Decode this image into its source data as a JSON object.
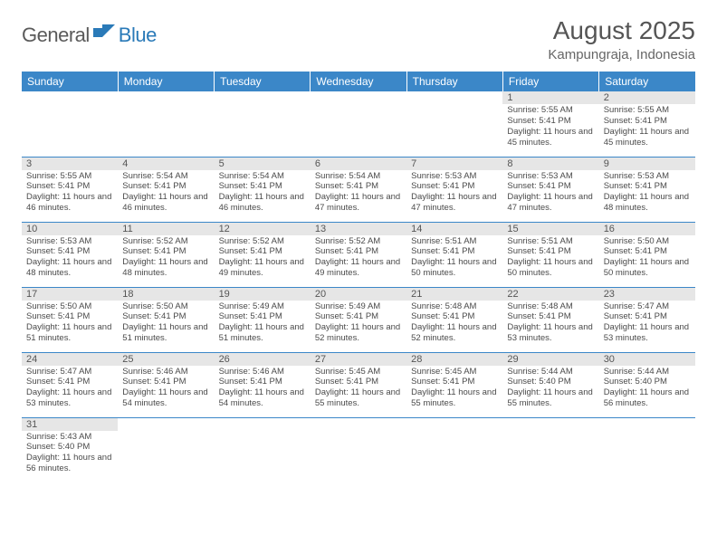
{
  "brand": {
    "part1": "General",
    "part2": "Blue"
  },
  "title": "August 2025",
  "location": "Kampungraja, Indonesia",
  "colors": {
    "header_bg": "#3b87c8",
    "header_text": "#ffffff",
    "daynum_bg": "#e6e6e6",
    "cell_border": "#3b87c8",
    "logo_blue": "#2a7ab8",
    "body_text": "#4a4a4a"
  },
  "day_names": [
    "Sunday",
    "Monday",
    "Tuesday",
    "Wednesday",
    "Thursday",
    "Friday",
    "Saturday"
  ],
  "weeks": [
    [
      null,
      null,
      null,
      null,
      null,
      {
        "n": "1",
        "sr": "5:55 AM",
        "ss": "5:41 PM",
        "dl": "11 hours and 45 minutes."
      },
      {
        "n": "2",
        "sr": "5:55 AM",
        "ss": "5:41 PM",
        "dl": "11 hours and 45 minutes."
      }
    ],
    [
      {
        "n": "3",
        "sr": "5:55 AM",
        "ss": "5:41 PM",
        "dl": "11 hours and 46 minutes."
      },
      {
        "n": "4",
        "sr": "5:54 AM",
        "ss": "5:41 PM",
        "dl": "11 hours and 46 minutes."
      },
      {
        "n": "5",
        "sr": "5:54 AM",
        "ss": "5:41 PM",
        "dl": "11 hours and 46 minutes."
      },
      {
        "n": "6",
        "sr": "5:54 AM",
        "ss": "5:41 PM",
        "dl": "11 hours and 47 minutes."
      },
      {
        "n": "7",
        "sr": "5:53 AM",
        "ss": "5:41 PM",
        "dl": "11 hours and 47 minutes."
      },
      {
        "n": "8",
        "sr": "5:53 AM",
        "ss": "5:41 PM",
        "dl": "11 hours and 47 minutes."
      },
      {
        "n": "9",
        "sr": "5:53 AM",
        "ss": "5:41 PM",
        "dl": "11 hours and 48 minutes."
      }
    ],
    [
      {
        "n": "10",
        "sr": "5:53 AM",
        "ss": "5:41 PM",
        "dl": "11 hours and 48 minutes."
      },
      {
        "n": "11",
        "sr": "5:52 AM",
        "ss": "5:41 PM",
        "dl": "11 hours and 48 minutes."
      },
      {
        "n": "12",
        "sr": "5:52 AM",
        "ss": "5:41 PM",
        "dl": "11 hours and 49 minutes."
      },
      {
        "n": "13",
        "sr": "5:52 AM",
        "ss": "5:41 PM",
        "dl": "11 hours and 49 minutes."
      },
      {
        "n": "14",
        "sr": "5:51 AM",
        "ss": "5:41 PM",
        "dl": "11 hours and 50 minutes."
      },
      {
        "n": "15",
        "sr": "5:51 AM",
        "ss": "5:41 PM",
        "dl": "11 hours and 50 minutes."
      },
      {
        "n": "16",
        "sr": "5:50 AM",
        "ss": "5:41 PM",
        "dl": "11 hours and 50 minutes."
      }
    ],
    [
      {
        "n": "17",
        "sr": "5:50 AM",
        "ss": "5:41 PM",
        "dl": "11 hours and 51 minutes."
      },
      {
        "n": "18",
        "sr": "5:50 AM",
        "ss": "5:41 PM",
        "dl": "11 hours and 51 minutes."
      },
      {
        "n": "19",
        "sr": "5:49 AM",
        "ss": "5:41 PM",
        "dl": "11 hours and 51 minutes."
      },
      {
        "n": "20",
        "sr": "5:49 AM",
        "ss": "5:41 PM",
        "dl": "11 hours and 52 minutes."
      },
      {
        "n": "21",
        "sr": "5:48 AM",
        "ss": "5:41 PM",
        "dl": "11 hours and 52 minutes."
      },
      {
        "n": "22",
        "sr": "5:48 AM",
        "ss": "5:41 PM",
        "dl": "11 hours and 53 minutes."
      },
      {
        "n": "23",
        "sr": "5:47 AM",
        "ss": "5:41 PM",
        "dl": "11 hours and 53 minutes."
      }
    ],
    [
      {
        "n": "24",
        "sr": "5:47 AM",
        "ss": "5:41 PM",
        "dl": "11 hours and 53 minutes."
      },
      {
        "n": "25",
        "sr": "5:46 AM",
        "ss": "5:41 PM",
        "dl": "11 hours and 54 minutes."
      },
      {
        "n": "26",
        "sr": "5:46 AM",
        "ss": "5:41 PM",
        "dl": "11 hours and 54 minutes."
      },
      {
        "n": "27",
        "sr": "5:45 AM",
        "ss": "5:41 PM",
        "dl": "11 hours and 55 minutes."
      },
      {
        "n": "28",
        "sr": "5:45 AM",
        "ss": "5:41 PM",
        "dl": "11 hours and 55 minutes."
      },
      {
        "n": "29",
        "sr": "5:44 AM",
        "ss": "5:40 PM",
        "dl": "11 hours and 55 minutes."
      },
      {
        "n": "30",
        "sr": "5:44 AM",
        "ss": "5:40 PM",
        "dl": "11 hours and 56 minutes."
      }
    ],
    [
      {
        "n": "31",
        "sr": "5:43 AM",
        "ss": "5:40 PM",
        "dl": "11 hours and 56 minutes."
      },
      null,
      null,
      null,
      null,
      null,
      null
    ]
  ],
  "labels": {
    "sunrise": "Sunrise:",
    "sunset": "Sunset:",
    "daylight": "Daylight:"
  }
}
